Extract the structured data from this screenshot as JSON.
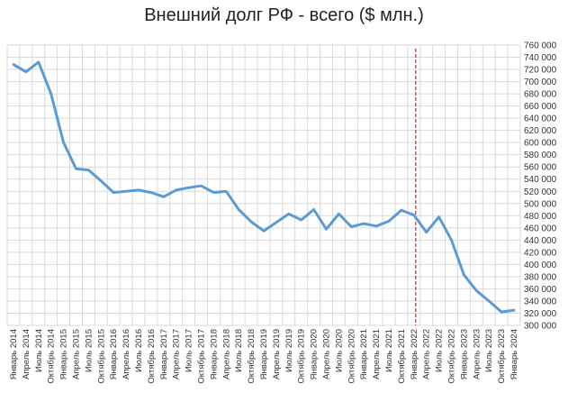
{
  "chart_data": {
    "type": "line",
    "title": "Внешний долг РФ - всего ($ млн.)",
    "xlabel": "",
    "ylabel": "",
    "ylim": [
      300000,
      760000
    ],
    "ytick_step": 20000,
    "ytick_labels": [
      "300 000",
      "320 000",
      "340 000",
      "360 000",
      "380 000",
      "400 000",
      "420 000",
      "440 000",
      "460 000",
      "480 000",
      "500 000",
      "520 000",
      "540 000",
      "560 000",
      "580 000",
      "600 000",
      "620 000",
      "640 000",
      "660 000",
      "680 000",
      "700 000",
      "720 000",
      "740 000",
      "760 000"
    ],
    "grid": true,
    "line_color": "#5B9BD5",
    "marker_line": {
      "category": "Январь 2022",
      "color": "#C00000",
      "style": "dashed"
    },
    "categories": [
      "Январь 2014",
      "Апрель 2014",
      "Июль 2014",
      "Октябрь 2014",
      "Январь 2015",
      "Апрель 2015",
      "Июль 2015",
      "Октябрь 2015",
      "Январь 2016",
      "Апрель 2016",
      "Июль 2016",
      "Октябрь 2016",
      "Январь 2017",
      "Апрель 2017",
      "Июль 2017",
      "Октябрь 2017",
      "Январь 2018",
      "Апрель 2018",
      "Июль 2018",
      "Октябрь 2018",
      "Январь 2019",
      "Апрель 2019",
      "Июль 2019",
      "Октябрь 2019",
      "Январь 2020",
      "Апрель 2020",
      "Июль 2020",
      "Октябрь 2020",
      "Январь 2021",
      "Апрель 2021",
      "Июль 2021",
      "Октябрь 2021",
      "Январь 2022",
      "Апрель 2022",
      "Июль 2022",
      "Октябрь 2022",
      "Январь 2023",
      "Апрель 2023",
      "Июль 2023",
      "Октябрь 2023",
      "Январь 2024"
    ],
    "series": [
      {
        "values": [
          728000,
          716000,
          732000,
          680000,
          600000,
          557000,
          555000,
          537000,
          518000,
          520000,
          522000,
          518000,
          511000,
          522000,
          526000,
          529000,
          518000,
          520000,
          490000,
          470000,
          455000,
          469000,
          483000,
          473000,
          490000,
          458000,
          483000,
          462000,
          467000,
          463000,
          471000,
          489000,
          481000,
          453000,
          478000,
          440000,
          383000,
          357000,
          340000,
          322000,
          325000
        ]
      }
    ]
  }
}
